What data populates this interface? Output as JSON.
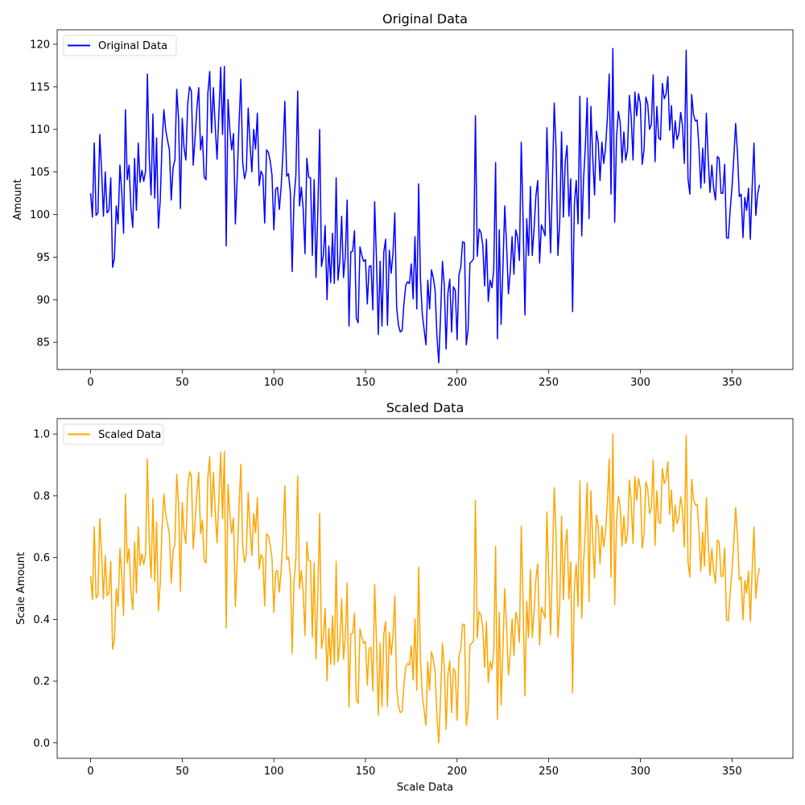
{
  "chart_data": [
    {
      "type": "line",
      "title": "Original Data",
      "xlabel": "",
      "ylabel": "Amount",
      "xlim": [
        -18.25,
        383.25
      ],
      "ylim": [
        81.8,
        121.7
      ],
      "xticks": [
        0,
        50,
        100,
        150,
        200,
        250,
        300,
        350
      ],
      "yticks": [
        85,
        90,
        95,
        100,
        105,
        110,
        115,
        120
      ],
      "legend": {
        "position": "top-left",
        "entries": [
          "Original Data"
        ]
      },
      "series": [
        {
          "name": "Original Data",
          "color": "#0000ff",
          "values": [
            102.5,
            99.7,
            108.4,
            99.9,
            100.2,
            109.4,
            105.3,
            99.8,
            105.0,
            100.2,
            100.5,
            104.3,
            93.8,
            94.9,
            101.0,
            98.9,
            105.8,
            102.6,
            97.8,
            112.3,
            104.1,
            105.8,
            100.8,
            98.5,
            106.6,
            100.5,
            108.4,
            103.8,
            105.2,
            103.9,
            105.1,
            116.5,
            106.7,
            102.3,
            111.8,
            101.9,
            109.0,
            98.4,
            101.7,
            108.4,
            112.3,
            109.9,
            108.7,
            107.6,
            101.7,
            105.5,
            106.4,
            114.7,
            111.3,
            100.7,
            111.3,
            107.8,
            106.4,
            113.0,
            115.0,
            114.5,
            105.8,
            109.0,
            112.5,
            114.9,
            107.6,
            109.2,
            104.4,
            104.1,
            114.3,
            116.8,
            109.6,
            114.9,
            110.4,
            106.5,
            111.8,
            117.3,
            109.4,
            117.4,
            96.3,
            113.5,
            109.9,
            107.6,
            109.5,
            98.9,
            104.4,
            110.7,
            115.9,
            106.1,
            104.2,
            105.2,
            112.5,
            108.3,
            105.0,
            110.0,
            107.7,
            111.9,
            103.4,
            105.1,
            104.6,
            99.0,
            107.6,
            107.3,
            106.3,
            104.6,
            98.2,
            103.0,
            103.2,
            100.6,
            103.3,
            107.4,
            113.3,
            104.5,
            104.8,
            102.6,
            93.3,
            101.9,
            104.5,
            114.5,
            101.0,
            103.2,
            100.7,
            95.4,
            106.6,
            104.4,
            104.3,
            95.2,
            104.1,
            92.6,
            100.4,
            110.0,
            93.9,
            95.2,
            98.7,
            90.0,
            96.3,
            92.0,
            97.8,
            91.9,
            104.3,
            92.3,
            94.5,
            99.8,
            92.6,
            95.1,
            101.7,
            86.9,
            95.6,
            95.7,
            98.1,
            87.8,
            87.3,
            96.2,
            95.2,
            94.5,
            94.7,
            89.5,
            93.9,
            94.0,
            88.8,
            101.5,
            94.7,
            85.9,
            94.5,
            86.9,
            95.6,
            97.1,
            87.0,
            95.8,
            93.1,
            95.4,
            100.2,
            89.1,
            87.0,
            86.2,
            86.4,
            89.6,
            91.7,
            92.1,
            91.9,
            94.2,
            90.1,
            97.4,
            88.9,
            103.6,
            92.4,
            88.3,
            86.5,
            84.7,
            92.3,
            88.9,
            93.5,
            92.6,
            91.1,
            85.7,
            82.6,
            88.3,
            94.5,
            91.7,
            84.2,
            90.8,
            92.4,
            86.2,
            91.5,
            91.1,
            85.3,
            92.9,
            93.8,
            96.8,
            96.7,
            84.7,
            86.5,
            94.3,
            94.5,
            94.8,
            111.6,
            95.1,
            98.3,
            97.9,
            96.4,
            91.6,
            97.1,
            89.8,
            92.3,
            91.4,
            93.6,
            106.1,
            85.4,
            98.2,
            87.1,
            93.8,
            101.0,
            96.4,
            90.7,
            93.3,
            97.4,
            93.0,
            98.2,
            97.3,
            94.6,
            108.5,
            99.5,
            88.2,
            99.5,
            95.2,
            103.3,
            95.2,
            98.3,
            102.2,
            104.0,
            94.3,
            98.8,
            98.2,
            97.5,
            110.2,
            102.4,
            95.5,
            103.8,
            113.1,
            107.6,
            95.2,
            99.1,
            109.7,
            99.7,
            106.2,
            108.1,
            99.8,
            104.2,
            88.6,
            101.2,
            104.0,
            98.9,
            113.9,
            97.5,
            104.1,
            108.1,
            113.7,
            99.5,
            112.7,
            106.7,
            102.3,
            109.8,
            108.5,
            104.0,
            108.5,
            106.0,
            107.8,
            111.4,
            116.5,
            102.4,
            119.5,
            99.1,
            109.1,
            112.1,
            110.8,
            106.1,
            109.7,
            106.4,
            107.6,
            114.0,
            111.4,
            106.4,
            114.4,
            111.6,
            114.2,
            113.0,
            105.9,
            107.6,
            113.8,
            113.0,
            110.0,
            110.6,
            116.4,
            106.2,
            112.7,
            109.0,
            108.8,
            115.4,
            113.6,
            114.1,
            116.2,
            109.9,
            112.8,
            107.8,
            111.0,
            108.8,
            109.5,
            112.0,
            110.4,
            106.0,
            119.3,
            104.2,
            102.4,
            114.1,
            111.7,
            111.0,
            111.1,
            107.8,
            103.1,
            107.8,
            103.7,
            111.9,
            106.6,
            102.6,
            105.8,
            103.1,
            101.7,
            106.8,
            106.6,
            102.5,
            102.5,
            105.9,
            97.3,
            97.2,
            100.5,
            103.2,
            106.7,
            110.7,
            107.2,
            102.1,
            102.4,
            97.3,
            102.0,
            100.5,
            103.1,
            97.1,
            103.2,
            108.4,
            99.9,
            102.4,
            103.5
          ]
        }
      ]
    },
    {
      "type": "line",
      "title": "Scaled Data",
      "xlabel": "Scale Data",
      "ylabel": "Scale Amount",
      "xlim": [
        -18.25,
        383.25
      ],
      "ylim": [
        -0.05,
        1.05
      ],
      "xticks": [
        0,
        50,
        100,
        150,
        200,
        250,
        300,
        350
      ],
      "yticks": [
        0.0,
        0.2,
        0.4,
        0.6,
        0.8,
        1.0
      ],
      "legend": {
        "position": "top-left",
        "entries": [
          "Scaled Data"
        ]
      },
      "scale_min": 82.6,
      "scale_max": 119.5,
      "series": [
        {
          "name": "Scaled Data",
          "color": "#ffa500",
          "derived_from": "Original Data"
        }
      ]
    }
  ]
}
